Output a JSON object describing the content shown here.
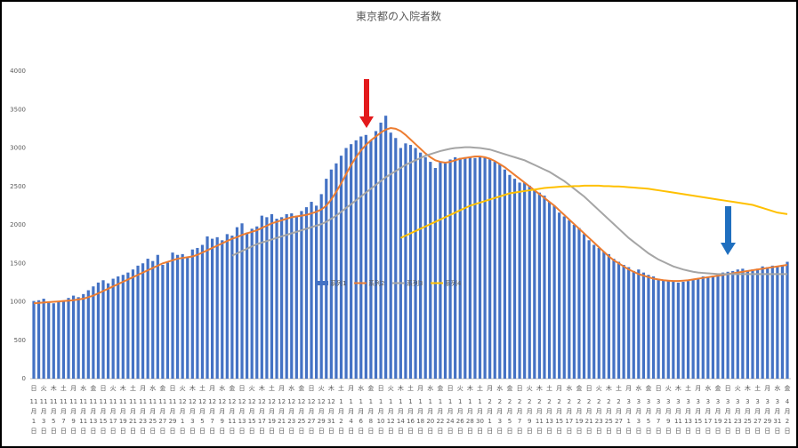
{
  "chart_data": {
    "type": "bar",
    "title": "東京都の入院者数",
    "categories": [
      "11月1日",
      null,
      "11月3日",
      null,
      "11月5日",
      null,
      "11月7日",
      null,
      "11月9日",
      null,
      "11月11日",
      null,
      "11月13日",
      null,
      "11月15日",
      null,
      "11月17日",
      null,
      "11月19日",
      null,
      "11月21日",
      null,
      "11月23日",
      null,
      "11月25日",
      null,
      "11月27日",
      null,
      "11月29日",
      null,
      "12月1日",
      null,
      "12月3日",
      null,
      "12月5日",
      null,
      "12月7日",
      null,
      "12月9日",
      null,
      "12月11日",
      null,
      "12月13日",
      null,
      "12月15日",
      null,
      "12月17日",
      null,
      "12月19日",
      null,
      "12月21日",
      null,
      "12月23日",
      null,
      "12月25日",
      null,
      "12月27日",
      null,
      "12月29日",
      null,
      "12月31日",
      null,
      "1月2日",
      null,
      "1月4日",
      null,
      "1月6日",
      null,
      "1月8日",
      null,
      "1月10日",
      null,
      "1月12日",
      null,
      "1月14日",
      null,
      "1月16日",
      null,
      "1月18日",
      null,
      "1月20日",
      null,
      "1月22日",
      null,
      "1月24日",
      null,
      "1月26日",
      null,
      "1月28日",
      null,
      "1月30日",
      null,
      "2月1日",
      null,
      "2月3日",
      null,
      "2月5日",
      null,
      "2月7日",
      null,
      "2月9日",
      null,
      "2月11日",
      null,
      "2月13日",
      null,
      "2月15日",
      null,
      "2月17日",
      null,
      "2月19日",
      null,
      "2月21日",
      null,
      "2月23日",
      null,
      "2月25日",
      null,
      "2月27日",
      null,
      "3月1日",
      null,
      "3月3日",
      null,
      "3月5日",
      null,
      "3月7日",
      null,
      "3月9日",
      null,
      "3月11日",
      null,
      "3月13日",
      null,
      "3月15日",
      null,
      "3月17日",
      null,
      "3月19日",
      null,
      "3月21日",
      null,
      "3月23日",
      null,
      "3月25日",
      null,
      "3月27日",
      null,
      "3月29日",
      null,
      "3月31日",
      null,
      "4月2日"
    ],
    "weekdays": [
      "日",
      null,
      "火",
      null,
      "木",
      null,
      "土",
      null,
      "月",
      null,
      "水",
      null,
      "金",
      null,
      "日",
      null,
      "火",
      null,
      "木",
      null,
      "土",
      null,
      "月",
      null,
      "水",
      null,
      "金",
      null,
      "日",
      null,
      "火",
      null,
      "木",
      null,
      "土",
      null,
      "月",
      null,
      "水",
      null,
      "金",
      null,
      "日",
      null,
      "火",
      null,
      "木",
      null,
      "土",
      null,
      "月",
      null,
      "水",
      null,
      "金",
      null,
      "日",
      null,
      "火",
      null,
      "木",
      null,
      "土",
      null,
      "月",
      null,
      "水",
      null,
      "金",
      null,
      "日",
      null,
      "火",
      null,
      "木",
      null,
      "土",
      null,
      "月",
      null,
      "水",
      null,
      "金",
      null,
      "日",
      null,
      "火",
      null,
      "木",
      null,
      "土",
      null,
      "月",
      null,
      "水",
      null,
      "金",
      null,
      "日",
      null,
      "火",
      null,
      "木",
      null,
      "土",
      null,
      "月",
      null,
      "水",
      null,
      "金",
      null,
      "日",
      null,
      "火",
      null,
      "木",
      null,
      "土",
      null,
      "月",
      null,
      "水",
      null,
      "金",
      null,
      "日",
      null,
      "火",
      null,
      "木",
      null,
      "土",
      null,
      "月",
      null,
      "水",
      null,
      "金",
      null,
      "日",
      null,
      "火",
      null,
      "木",
      null,
      "土",
      null,
      "月",
      null,
      "水",
      null,
      "金"
    ],
    "series": [
      {
        "name": "系列1",
        "color": "#4472c4",
        "kind": "bar",
        "values": [
          1010,
          1020,
          1040,
          990,
          980,
          1000,
          1010,
          1050,
          1080,
          1060,
          1100,
          1150,
          1200,
          1250,
          1280,
          1240,
          1300,
          1330,
          1350,
          1380,
          1420,
          1470,
          1500,
          1560,
          1530,
          1610,
          1480,
          1510,
          1640,
          1610,
          1620,
          1580,
          1680,
          1700,
          1740,
          1850,
          1820,
          1840,
          1800,
          1880,
          1860,
          1970,
          2020,
          1900,
          1950,
          1980,
          2120,
          2100,
          2140,
          2080,
          2100,
          2140,
          2150,
          2120,
          2180,
          2230,
          2300,
          2250,
          2400,
          2600,
          2720,
          2800,
          2900,
          3000,
          3050,
          3100,
          3150,
          3170,
          3100,
          3220,
          3330,
          3420,
          3200,
          3130,
          3000,
          3060,
          3040,
          3000,
          2940,
          2880,
          2820,
          2740,
          2820,
          2800,
          2850,
          2880,
          2870,
          2880,
          2890,
          2870,
          2880,
          2880,
          2860,
          2820,
          2790,
          2720,
          2650,
          2600,
          2550,
          2550,
          2510,
          2460,
          2420,
          2380,
          2300,
          2250,
          2160,
          2110,
          2060,
          2000,
          1960,
          1880,
          1800,
          1740,
          1700,
          1650,
          1620,
          1560,
          1520,
          1480,
          1450,
          1400,
          1420,
          1380,
          1350,
          1330,
          1300,
          1280,
          1270,
          1260,
          1250,
          1260,
          1270,
          1290,
          1300,
          1330,
          1320,
          1340,
          1360,
          1380,
          1390,
          1400,
          1420,
          1430,
          1400,
          1420,
          1430,
          1460,
          1450,
          1470,
          1460,
          1480,
          1520
        ]
      },
      {
        "name": "系列2",
        "color": "#ed7d31",
        "kind": "line",
        "values": [
          980,
          985,
          990,
          995,
          1000,
          1005,
          1010,
          1015,
          1020,
          1030,
          1040,
          1060,
          1080,
          1110,
          1140,
          1170,
          1200,
          1230,
          1260,
          1290,
          1320,
          1350,
          1380,
          1410,
          1440,
          1470,
          1500,
          1520,
          1540,
          1560,
          1570,
          1580,
          1590,
          1610,
          1640,
          1670,
          1700,
          1730,
          1760,
          1790,
          1820,
          1840,
          1870,
          1890,
          1910,
          1930,
          1960,
          1990,
          2020,
          2040,
          2060,
          2080,
          2100,
          2110,
          2120,
          2130,
          2150,
          2170,
          2200,
          2250,
          2330,
          2430,
          2540,
          2660,
          2780,
          2880,
          2970,
          3040,
          3100,
          3150,
          3200,
          3240,
          3260,
          3250,
          3220,
          3170,
          3110,
          3050,
          2990,
          2930,
          2880,
          2840,
          2820,
          2810,
          2820,
          2840,
          2860,
          2870,
          2880,
          2890,
          2890,
          2880,
          2860,
          2830,
          2790,
          2750,
          2700,
          2650,
          2600,
          2550,
          2500,
          2450,
          2400,
          2350,
          2300,
          2250,
          2190,
          2130,
          2070,
          2010,
          1950,
          1890,
          1830,
          1770,
          1710,
          1650,
          1590,
          1540,
          1500,
          1460,
          1420,
          1390,
          1360,
          1340,
          1320,
          1300,
          1290,
          1280,
          1275,
          1270,
          1270,
          1275,
          1280,
          1290,
          1300,
          1310,
          1320,
          1330,
          1340,
          1350,
          1360,
          1370,
          1380,
          1390,
          1400,
          1410,
          1420,
          1430,
          1440,
          1450,
          1460,
          1470,
          1480
        ]
      },
      {
        "name": "系列3",
        "color": "#a5a5a5",
        "kind": "line",
        "values": [
          null,
          null,
          null,
          null,
          null,
          null,
          null,
          null,
          null,
          null,
          null,
          null,
          null,
          null,
          null,
          null,
          null,
          null,
          null,
          null,
          null,
          null,
          null,
          null,
          null,
          null,
          null,
          null,
          null,
          null,
          null,
          null,
          null,
          null,
          null,
          null,
          null,
          null,
          null,
          null,
          1600,
          1630,
          1660,
          1690,
          1720,
          1750,
          1770,
          1790,
          1810,
          1830,
          1850,
          1870,
          1890,
          1910,
          1930,
          1950,
          1970,
          1990,
          2010,
          2040,
          2080,
          2120,
          2170,
          2220,
          2270,
          2320,
          2370,
          2420,
          2470,
          2520,
          2570,
          2620,
          2660,
          2700,
          2740,
          2780,
          2810,
          2840,
          2870,
          2900,
          2920,
          2940,
          2960,
          2975,
          2990,
          3000,
          3005,
          3010,
          3010,
          3005,
          3000,
          2990,
          2980,
          2960,
          2940,
          2920,
          2900,
          2880,
          2860,
          2840,
          2810,
          2780,
          2750,
          2720,
          2690,
          2650,
          2610,
          2570,
          2520,
          2470,
          2420,
          2370,
          2310,
          2250,
          2190,
          2130,
          2070,
          2010,
          1950,
          1890,
          1830,
          1780,
          1730,
          1680,
          1630,
          1590,
          1550,
          1520,
          1490,
          1460,
          1440,
          1420,
          1405,
          1390,
          1380,
          1375,
          1370,
          1365,
          1360,
          1360,
          1360,
          1360,
          1360,
          1360,
          1360,
          1360,
          1360,
          1360,
          1360,
          1360,
          1360,
          1360,
          1360
        ]
      },
      {
        "name": "系列4",
        "color": "#ffc000",
        "kind": "line",
        "values": [
          null,
          null,
          null,
          null,
          null,
          null,
          null,
          null,
          null,
          null,
          null,
          null,
          null,
          null,
          null,
          null,
          null,
          null,
          null,
          null,
          null,
          null,
          null,
          null,
          null,
          null,
          null,
          null,
          null,
          null,
          null,
          null,
          null,
          null,
          null,
          null,
          null,
          null,
          null,
          null,
          null,
          null,
          null,
          null,
          null,
          null,
          null,
          null,
          null,
          null,
          null,
          null,
          null,
          null,
          null,
          null,
          null,
          null,
          null,
          null,
          null,
          null,
          null,
          null,
          null,
          null,
          null,
          null,
          null,
          null,
          null,
          null,
          null,
          null,
          1830,
          1860,
          1890,
          1920,
          1950,
          1980,
          2010,
          2040,
          2070,
          2100,
          2130,
          2160,
          2190,
          2220,
          2250,
          2270,
          2290,
          2310,
          2330,
          2350,
          2370,
          2390,
          2410,
          2420,
          2430,
          2440,
          2450,
          2460,
          2470,
          2480,
          2485,
          2490,
          2495,
          2500,
          2500,
          2505,
          2505,
          2510,
          2510,
          2510,
          2510,
          2505,
          2505,
          2500,
          2500,
          2495,
          2490,
          2485,
          2480,
          2475,
          2470,
          2460,
          2450,
          2440,
          2430,
          2420,
          2410,
          2400,
          2390,
          2380,
          2370,
          2360,
          2350,
          2340,
          2330,
          2320,
          2310,
          2300,
          2290,
          2280,
          2270,
          2260,
          2240,
          2220,
          2200,
          2180,
          2160,
          2150,
          2140
        ]
      }
    ],
    "ylim": [
      0,
      4000
    ],
    "yticks": [
      0,
      500,
      1000,
      1500,
      2000,
      2500,
      3000,
      3500,
      4000
    ],
    "grid": false
  }
}
